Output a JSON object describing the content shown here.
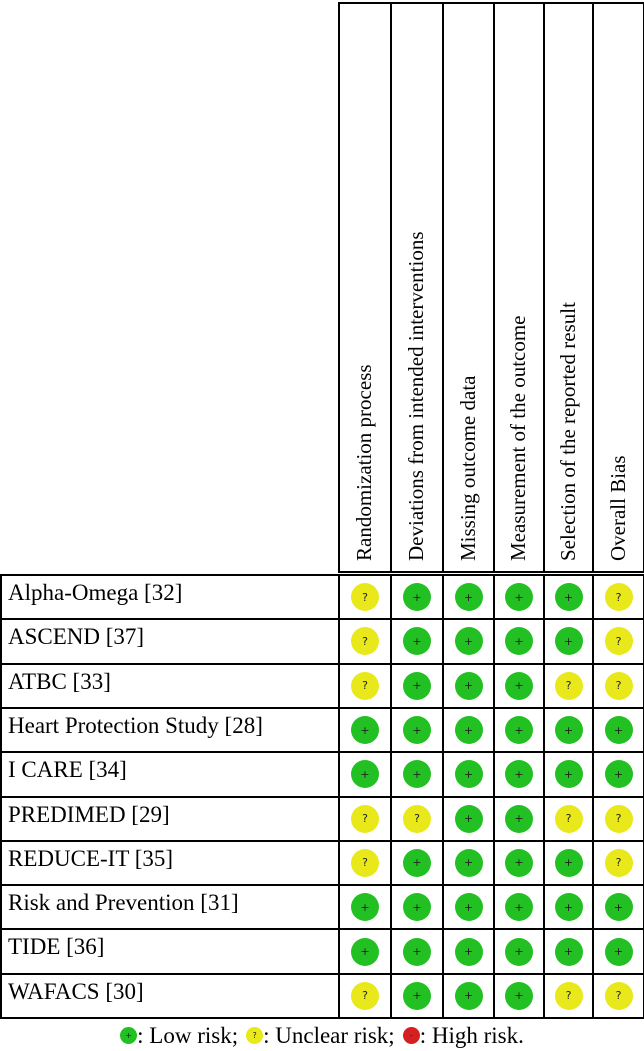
{
  "columns": [
    "Randomization process",
    "Deviations from intended interventions",
    "Missing outcome data",
    "Measurement of the outcome",
    "Selection of the reported result",
    "Overall Bias"
  ],
  "rows": [
    {
      "study": "Alpha-Omega [32]",
      "ratings": [
        "unclear",
        "low",
        "low",
        "low",
        "low",
        "unclear"
      ]
    },
    {
      "study": "ASCEND [37]",
      "ratings": [
        "unclear",
        "low",
        "low",
        "low",
        "low",
        "unclear"
      ]
    },
    {
      "study": "ATBC [33]",
      "ratings": [
        "unclear",
        "low",
        "low",
        "low",
        "unclear",
        "unclear"
      ]
    },
    {
      "study": "Heart Protection Study [28]",
      "ratings": [
        "low",
        "low",
        "low",
        "low",
        "low",
        "low"
      ]
    },
    {
      "study": "I CARE [34]",
      "ratings": [
        "low",
        "low",
        "low",
        "low",
        "low",
        "low"
      ]
    },
    {
      "study": "PREDIMED [29]",
      "ratings": [
        "unclear",
        "unclear",
        "low",
        "low",
        "unclear",
        "unclear"
      ]
    },
    {
      "study": "REDUCE-IT [35]",
      "ratings": [
        "unclear",
        "low",
        "low",
        "low",
        "low",
        "unclear"
      ]
    },
    {
      "study": "Risk and Prevention [31]",
      "ratings": [
        "low",
        "low",
        "low",
        "low",
        "low",
        "low"
      ]
    },
    {
      "study": "TIDE [36]",
      "ratings": [
        "low",
        "low",
        "low",
        "low",
        "low",
        "low"
      ]
    },
    {
      "study": "WAFACS [30]",
      "ratings": [
        "unclear",
        "low",
        "low",
        "low",
        "unclear",
        "unclear"
      ]
    }
  ],
  "symbols": {
    "low": "+",
    "unclear": "?",
    "high": "-"
  },
  "colors": {
    "low": "#22c022",
    "unclear": "#e8e81a",
    "high": "#d42020"
  },
  "legend": {
    "low": ": Low risk;",
    "unclear": ": Unclear risk;",
    "high": ": High risk."
  }
}
